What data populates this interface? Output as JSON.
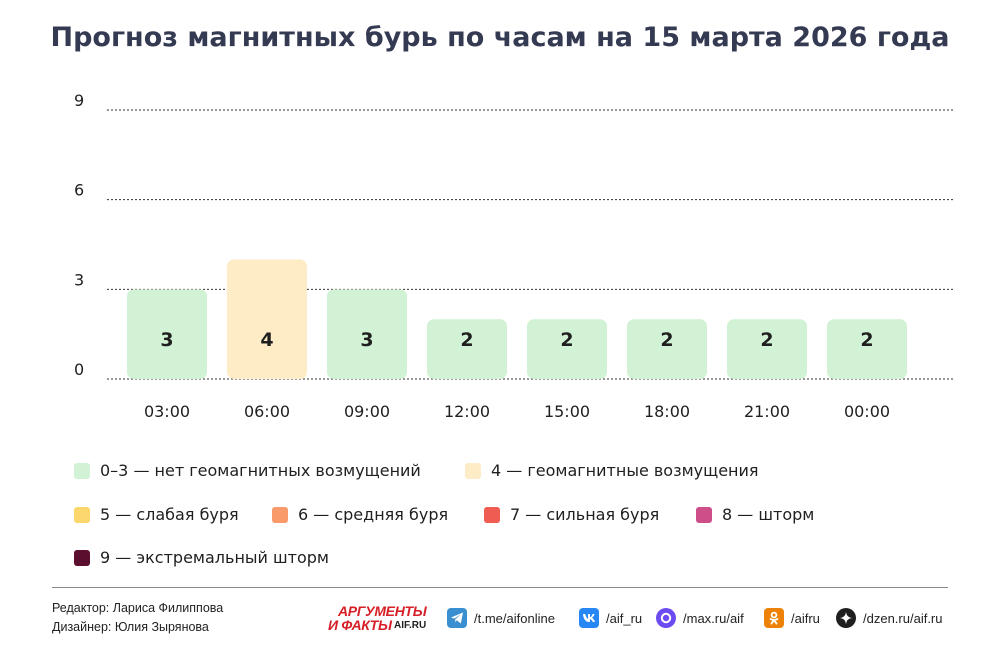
{
  "title": "Прогноз магнитных бурь по часам на 15 марта 2026 года",
  "chart_data": {
    "type": "bar",
    "categories": [
      "03:00",
      "06:00",
      "09:00",
      "12:00",
      "15:00",
      "18:00",
      "21:00",
      "00:00"
    ],
    "values": [
      3,
      4,
      3,
      2,
      2,
      2,
      2,
      2
    ],
    "ylim": [
      0,
      9
    ],
    "yticks": [
      0,
      3,
      6,
      9
    ],
    "grid": true,
    "bar_colors": [
      "#d1f2d4",
      "#fdecc5",
      "#d1f2d4",
      "#d1f2d4",
      "#d1f2d4",
      "#d1f2d4",
      "#d1f2d4",
      "#d1f2d4"
    ],
    "legend": [
      {
        "label": "0–3 — нет геомагнитных возмущений",
        "color": "#d1f2d4"
      },
      {
        "label": "4 — геомагнитные возмущения",
        "color": "#fdecc5"
      },
      {
        "label": "5 — слабая буря",
        "color": "#fbd76d"
      },
      {
        "label": "6 — средняя буря",
        "color": "#f89a6a"
      },
      {
        "label": "7 — сильная буря",
        "color": "#ef5c52"
      },
      {
        "label": "8 — шторм",
        "color": "#cc4f8a"
      },
      {
        "label": "9 — экстремальный шторм",
        "color": "#5c0e2e"
      }
    ]
  },
  "credits": {
    "editor": "Редактор: Лариса Филиппова",
    "designer": "Дизайнер: Юлия Зырянова"
  },
  "logo": {
    "top": "АРГУМЕНТЫ",
    "bottom": "И ФАКТЫ",
    "domain": "AIF.RU"
  },
  "social": [
    {
      "icon": "telegram-icon",
      "text": "/t.me/aifonline",
      "color": "#3a8fd0"
    },
    {
      "icon": "vk-icon",
      "text": "/aif_ru",
      "color": "#2787f5"
    },
    {
      "icon": "max-icon",
      "text": "/max.ru/aif",
      "color": "#6c4bf0"
    },
    {
      "icon": "ok-icon",
      "text": "/aifru",
      "color": "#ee8208"
    },
    {
      "icon": "dzen-icon",
      "text": "/dzen.ru/aif.ru",
      "color": "#1f1f1f"
    }
  ]
}
